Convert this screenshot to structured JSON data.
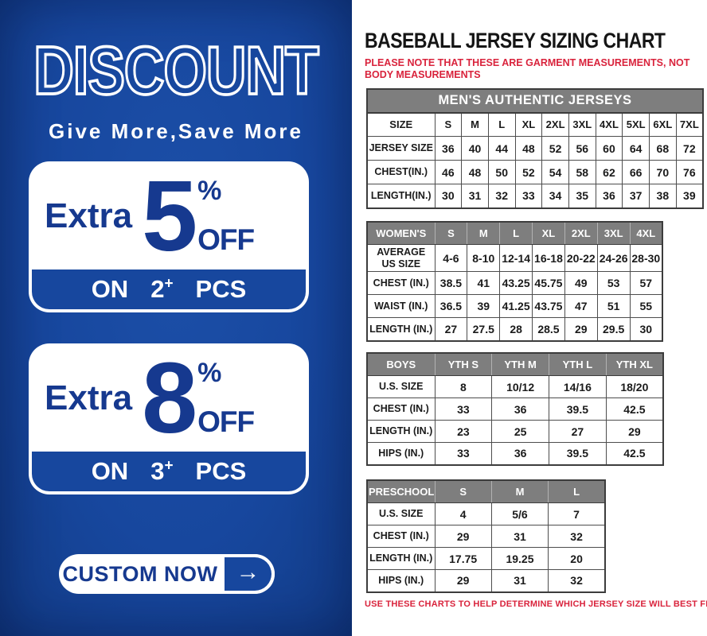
{
  "colors": {
    "panel_blue": "#17479e",
    "deep_blue_text": "#16398f",
    "table_header_gray": "#7e7e7e",
    "table_border_dark": "#3c3c3c",
    "alert_red": "#d9233c",
    "white": "#ffffff"
  },
  "left_panel": {
    "title": "DISCOUNT",
    "subtitle": "Give More,Save More",
    "offers": [
      {
        "prefix": "Extra",
        "percent": "5",
        "percent_sign": "%",
        "off_label": "OFF",
        "on_label": "ON",
        "quantity": "2",
        "plus": "+",
        "pcs_label": "PCS"
      },
      {
        "prefix": "Extra",
        "percent": "8",
        "percent_sign": "%",
        "off_label": "OFF",
        "on_label": "ON",
        "quantity": "3",
        "plus": "+",
        "pcs_label": "PCS"
      }
    ],
    "cta": {
      "label": "CUSTOM NOW",
      "arrow": "→"
    }
  },
  "right_panel": {
    "title": "BASEBALL JERSEY SIZING CHART",
    "note": "PLEASE NOTE THAT THESE ARE GARMENT MEASUREMENTS, NOT BODY MEASUREMENTS",
    "tables": [
      {
        "id": "mens",
        "banner": "MEN'S AUTHENTIC JERSEYS",
        "header_style": "plain",
        "header": [
          "SIZE",
          "S",
          "M",
          "L",
          "XL",
          "2XL",
          "3XL",
          "4XL",
          "5XL",
          "6XL",
          "7XL"
        ],
        "rows": [
          [
            "JERSEY SIZE",
            "36",
            "40",
            "44",
            "48",
            "52",
            "56",
            "60",
            "64",
            "68",
            "72"
          ],
          [
            "CHEST(IN.)",
            "46",
            "48",
            "50",
            "52",
            "54",
            "58",
            "62",
            "66",
            "70",
            "76"
          ],
          [
            "LENGTH(IN.)",
            "30",
            "31",
            "32",
            "33",
            "34",
            "35",
            "36",
            "37",
            "38",
            "39"
          ]
        ]
      },
      {
        "id": "womens",
        "banner": null,
        "header_style": "gray",
        "header": [
          "WOMEN'S",
          "S",
          "M",
          "L",
          "XL",
          "2XL",
          "3XL",
          "4XL"
        ],
        "rows": [
          [
            "AVERAGE US SIZE",
            "4-6",
            "8-10",
            "12-14",
            "16-18",
            "20-22",
            "24-26",
            "28-30"
          ],
          [
            "CHEST (IN.)",
            "38.5",
            "41",
            "43.25",
            "45.75",
            "49",
            "53",
            "57"
          ],
          [
            "WAIST (IN.)",
            "36.5",
            "39",
            "41.25",
            "43.75",
            "47",
            "51",
            "55"
          ],
          [
            "LENGTH (IN.)",
            "27",
            "27.5",
            "28",
            "28.5",
            "29",
            "29.5",
            "30"
          ]
        ]
      },
      {
        "id": "boys",
        "banner": null,
        "header_style": "gray",
        "header": [
          "BOYS",
          "YTH S",
          "YTH M",
          "YTH L",
          "YTH XL"
        ],
        "rows": [
          [
            "U.S. SIZE",
            "8",
            "10/12",
            "14/16",
            "18/20"
          ],
          [
            "CHEST (IN.)",
            "33",
            "36",
            "39.5",
            "42.5"
          ],
          [
            "LENGTH (IN.)",
            "23",
            "25",
            "27",
            "29"
          ],
          [
            "HIPS (IN.)",
            "33",
            "36",
            "39.5",
            "42.5"
          ]
        ]
      },
      {
        "id": "preschool",
        "banner": null,
        "header_style": "gray",
        "header": [
          "PRESCHOOL",
          "S",
          "M",
          "L"
        ],
        "rows": [
          [
            "U.S. SIZE",
            "4",
            "5/6",
            "7"
          ],
          [
            "CHEST (IN.)",
            "29",
            "31",
            "32"
          ],
          [
            "LENGTH (IN.)",
            "17.75",
            "19.25",
            "20"
          ],
          [
            "HIPS (IN.)",
            "29",
            "31",
            "32"
          ]
        ]
      }
    ],
    "footer": "USE THESE CHARTS TO HELP DETERMINE WHICH JERSEY SIZE WILL BEST FIT YOU."
  }
}
